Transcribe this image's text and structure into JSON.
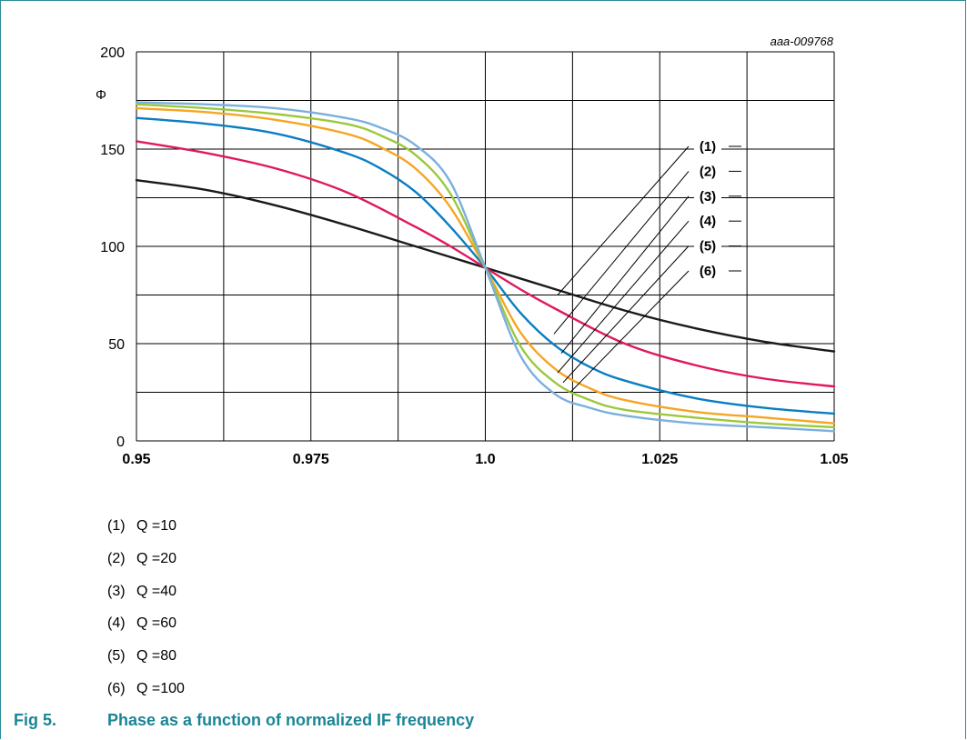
{
  "chart_data": {
    "type": "line",
    "title": "",
    "code": "aaa-009768",
    "xlabel": "",
    "ylabel": "Φ",
    "xlim": [
      0.95,
      1.05
    ],
    "ylim": [
      0,
      200
    ],
    "x_ticks": [
      "0.95",
      "0.975",
      "1.0",
      "1.025",
      "1.05"
    ],
    "y_ticks": [
      "0",
      "50",
      "100",
      "150",
      "200"
    ],
    "grid": true,
    "series": [
      {
        "label": "(1)",
        "name": "Q =10",
        "color": "#1a1a1a",
        "Q": 10,
        "x": [
          0.95,
          0.96,
          0.97,
          0.98,
          0.99,
          1.0,
          1.01,
          1.02,
          1.03,
          1.04,
          1.05
        ],
        "y": [
          134,
          129,
          121,
          111,
          100,
          89,
          78,
          67,
          58,
          51,
          46
        ]
      },
      {
        "label": "(2)",
        "name": "Q =20",
        "color": "#e0185e",
        "Q": 20,
        "x": [
          0.95,
          0.96,
          0.97,
          0.98,
          0.99,
          0.995,
          1.0,
          1.005,
          1.01,
          1.02,
          1.03,
          1.04,
          1.05
        ],
        "y": [
          154,
          148,
          140,
          128,
          110,
          100,
          89,
          78,
          68,
          50,
          39,
          32,
          28
        ]
      },
      {
        "label": "(3)",
        "name": "Q =40",
        "color": "#0a7ec2",
        "Q": 40,
        "x": [
          0.95,
          0.96,
          0.97,
          0.98,
          0.985,
          0.99,
          0.995,
          1.0,
          1.005,
          1.01,
          1.015,
          1.02,
          1.03,
          1.04,
          1.05
        ],
        "y": [
          166,
          163,
          158,
          148,
          140,
          128,
          110,
          89,
          66,
          49,
          38,
          31,
          22,
          17,
          14
        ]
      },
      {
        "label": "(4)",
        "name": "Q =60",
        "color": "#f5a623",
        "Q": 60,
        "x": [
          0.95,
          0.96,
          0.97,
          0.98,
          0.985,
          0.99,
          0.995,
          1.0,
          1.005,
          1.01,
          1.015,
          1.02,
          1.03,
          1.04,
          1.05
        ],
        "y": [
          171,
          169,
          165,
          158,
          151,
          140,
          120,
          89,
          56,
          37,
          27,
          21,
          15,
          12,
          9
        ]
      },
      {
        "label": "(5)",
        "name": "Q =80",
        "color": "#9cc83c",
        "Q": 80,
        "x": [
          0.95,
          0.96,
          0.97,
          0.98,
          0.985,
          0.99,
          0.995,
          1.0,
          1.005,
          1.01,
          1.015,
          1.02,
          1.03,
          1.04,
          1.05
        ],
        "y": [
          173,
          171,
          168,
          163,
          157,
          147,
          127,
          89,
          49,
          30,
          21,
          16,
          12,
          9,
          7
        ]
      },
      {
        "label": "(6)",
        "name": "Q =100",
        "color": "#7bb0dd",
        "Q": 100,
        "x": [
          0.95,
          0.96,
          0.97,
          0.98,
          0.985,
          0.99,
          0.995,
          1.0,
          1.005,
          1.01,
          1.015,
          1.02,
          1.03,
          1.04,
          1.05
        ],
        "y": [
          174,
          173,
          171,
          166,
          161,
          152,
          133,
          89,
          44,
          24,
          17,
          13,
          9,
          7,
          5
        ]
      }
    ]
  },
  "legend": [
    {
      "num": "(1)",
      "text": "Q =10"
    },
    {
      "num": "(2)",
      "text": "Q =20"
    },
    {
      "num": "(3)",
      "text": "Q =40"
    },
    {
      "num": "(4)",
      "text": "Q =60"
    },
    {
      "num": "(5)",
      "text": "Q =80"
    },
    {
      "num": "(6)",
      "text": "Q =100"
    }
  ],
  "caption": {
    "fig": "Fig 5.",
    "text": "Phase as a function of normalized IF frequency"
  }
}
